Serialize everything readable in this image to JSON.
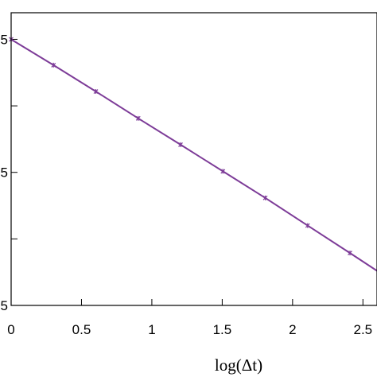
{
  "chart_data": {
    "type": "line",
    "title": "",
    "xlabel": "log(Δt)",
    "ylabel": "",
    "xlim": [
      0,
      2.6
    ],
    "ylim": [
      -20,
      -9
    ],
    "x_ticks": [
      0,
      0.5,
      1,
      1.5,
      2,
      2.5
    ],
    "x_tick_labels": [
      "0",
      "0.5",
      "1",
      "1.5",
      "2",
      "2.5"
    ],
    "y_ticks": [
      -10,
      -12.5,
      -15,
      -17.5,
      -20
    ],
    "y_tick_labels": [
      "5",
      "",
      "5",
      "",
      "5"
    ],
    "grid": false,
    "series": [
      {
        "color": "#7d3c98",
        "x": [
          0,
          0.301,
          0.602,
          0.903,
          1.204,
          1.505,
          1.806,
          2.107,
          2.408,
          2.6
        ],
        "y": [
          -10.0,
          -10.97,
          -11.96,
          -12.97,
          -13.96,
          -14.96,
          -15.96,
          -17.0,
          -18.03,
          -18.7
        ]
      }
    ]
  }
}
